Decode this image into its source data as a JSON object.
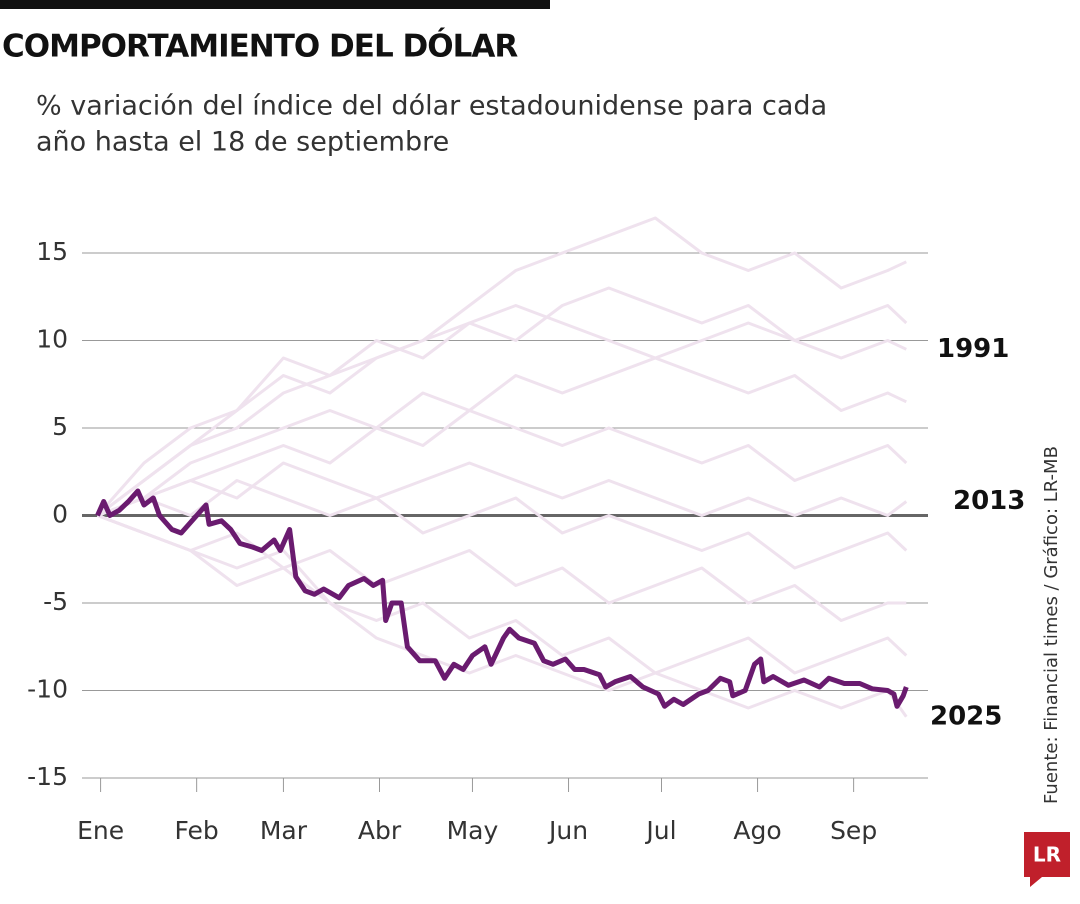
{
  "chart_data": {
    "type": "line",
    "title": "COMPORTAMIENTO DEL DÓLAR",
    "subtitle": [
      "% variación del índice del dólar estadounidense para cada",
      "año hasta el 18 de septiembre"
    ],
    "source": "Fuente: Financial times / Gráfico: LR-MB",
    "logo": "LR",
    "xlim": [
      -5,
      268
    ],
    "xticks": [
      {
        "value": 1,
        "label": "Ene"
      },
      {
        "value": 32,
        "label": "Feb"
      },
      {
        "value": 60,
        "label": "Mar"
      },
      {
        "value": 91,
        "label": "Abr"
      },
      {
        "value": 121,
        "label": "May"
      },
      {
        "value": 152,
        "label": "Jun"
      },
      {
        "value": 182,
        "label": "Jul"
      },
      {
        "value": 213,
        "label": "Ago"
      },
      {
        "value": 244,
        "label": "Sep"
      }
    ],
    "ylim": [
      -15,
      15
    ],
    "yticks": [
      15,
      10,
      5,
      0,
      -5,
      -10,
      -15
    ],
    "grid": true,
    "series": [
      {
        "color": "#efe2ee",
        "x": [
          0,
          15,
          30,
          45,
          60,
          75,
          90,
          105,
          120,
          135,
          150,
          165,
          180,
          195,
          210,
          225,
          240,
          255,
          261
        ],
        "values": [
          0,
          2,
          4,
          5,
          7,
          8,
          9,
          10,
          12,
          14,
          15,
          16,
          17,
          15,
          14,
          15,
          13,
          14,
          14.5
        ]
      },
      {
        "color": "#efe2ee",
        "x": [
          0,
          15,
          30,
          45,
          60,
          75,
          90,
          105,
          120,
          135,
          150,
          165,
          180,
          195,
          210,
          225,
          240,
          255,
          261
        ],
        "values": [
          0,
          3,
          5,
          6,
          8,
          7,
          9,
          10,
          11,
          10,
          12,
          13,
          12,
          11,
          12,
          10,
          11,
          12,
          11
        ]
      },
      {
        "name": "1991",
        "color": "#efe2ee",
        "x": [
          0,
          15,
          30,
          45,
          60,
          75,
          90,
          105,
          120,
          135,
          150,
          165,
          180,
          195,
          210,
          225,
          240,
          255,
          261
        ],
        "values": [
          0,
          2,
          4,
          6,
          9,
          8,
          10,
          9,
          11,
          12,
          11,
          10,
          9,
          10,
          11,
          10,
          9,
          10,
          9.5
        ]
      },
      {
        "color": "#efe2ee",
        "x": [
          0,
          15,
          30,
          45,
          60,
          75,
          90,
          105,
          120,
          135,
          150,
          165,
          180,
          195,
          210,
          225,
          240,
          255,
          261
        ],
        "values": [
          0,
          1,
          3,
          4,
          5,
          6,
          5,
          7,
          6,
          8,
          7,
          8,
          9,
          8,
          7,
          8,
          6,
          7,
          6.5
        ]
      },
      {
        "color": "#efe2ee",
        "x": [
          0,
          15,
          30,
          45,
          60,
          75,
          90,
          105,
          120,
          135,
          150,
          165,
          180,
          195,
          210,
          225,
          240,
          255,
          261
        ],
        "values": [
          0,
          1,
          2,
          3,
          4,
          3,
          5,
          4,
          6,
          5,
          4,
          5,
          4,
          3,
          4,
          2,
          3,
          4,
          3
        ]
      },
      {
        "name": "2013",
        "color": "#efe2ee",
        "x": [
          0,
          15,
          30,
          45,
          60,
          75,
          90,
          105,
          120,
          135,
          150,
          165,
          180,
          195,
          210,
          225,
          240,
          255,
          261
        ],
        "values": [
          0,
          1,
          2,
          1,
          3,
          2,
          1,
          2,
          3,
          2,
          1,
          2,
          1,
          0,
          1,
          0,
          1,
          0,
          0.8
        ]
      },
      {
        "color": "#efe2ee",
        "x": [
          0,
          15,
          30,
          45,
          60,
          75,
          90,
          105,
          120,
          135,
          150,
          165,
          180,
          195,
          210,
          225,
          240,
          255,
          261
        ],
        "values": [
          0,
          1,
          0,
          2,
          1,
          0,
          1,
          -1,
          0,
          1,
          -1,
          0,
          -1,
          -2,
          -1,
          -3,
          -2,
          -1,
          -2
        ]
      },
      {
        "color": "#efe2ee",
        "x": [
          0,
          15,
          30,
          45,
          60,
          75,
          90,
          105,
          120,
          135,
          150,
          165,
          180,
          195,
          210,
          225,
          240,
          255,
          261
        ],
        "values": [
          0,
          -1,
          -2,
          -1,
          -3,
          -2,
          -4,
          -3,
          -2,
          -4,
          -3,
          -5,
          -4,
          -3,
          -5,
          -4,
          -6,
          -5,
          -5
        ]
      },
      {
        "color": "#efe2ee",
        "x": [
          0,
          15,
          30,
          45,
          60,
          75,
          90,
          105,
          120,
          135,
          150,
          165,
          180,
          195,
          210,
          225,
          240,
          255,
          261
        ],
        "values": [
          0,
          -1,
          -2,
          -3,
          -2,
          -5,
          -6,
          -5,
          -7,
          -6,
          -8,
          -7,
          -9,
          -8,
          -7,
          -9,
          -8,
          -7,
          -8
        ]
      },
      {
        "color": "#efe2ee",
        "x": [
          0,
          15,
          30,
          45,
          60,
          75,
          90,
          105,
          120,
          135,
          150,
          165,
          180,
          195,
          210,
          225,
          240,
          255,
          261
        ],
        "values": [
          0,
          -1,
          -2,
          -4,
          -3,
          -5,
          -7,
          -8,
          -9,
          -8,
          -9,
          -10,
          -9,
          -10,
          -11,
          -10,
          -11,
          -10,
          -11.5
        ]
      },
      {
        "name": "2025",
        "color": "#6a1b6f",
        "x": [
          0,
          2,
          4,
          7,
          10,
          13,
          15,
          18,
          20,
          24,
          27,
          31,
          35,
          36,
          40,
          43,
          46,
          50,
          53,
          57,
          59,
          62,
          64,
          67,
          70,
          73,
          78,
          81,
          86,
          89,
          92,
          93,
          95,
          98,
          100,
          104,
          109,
          112,
          115,
          118,
          121,
          125,
          127,
          131,
          133,
          136,
          141,
          144,
          147,
          151,
          154,
          157,
          162,
          164,
          167,
          172,
          176,
          181,
          183,
          186,
          189,
          194,
          197,
          201,
          204,
          205,
          209,
          212,
          214,
          215,
          218,
          223,
          228,
          233,
          236,
          241,
          246,
          250,
          255,
          257,
          258,
          260,
          261
        ],
        "values": [
          0,
          0.8,
          0,
          0.3,
          0.8,
          1.4,
          0.6,
          1.0,
          0,
          -0.8,
          -1.0,
          -0.2,
          0.6,
          -0.5,
          -0.3,
          -0.8,
          -1.6,
          -1.8,
          -2.0,
          -1.4,
          -2.0,
          -0.8,
          -3.5,
          -4.3,
          -4.5,
          -4.2,
          -4.7,
          -4.0,
          -3.6,
          -4.0,
          -3.7,
          -6.0,
          -5.0,
          -5.0,
          -7.5,
          -8.3,
          -8.3,
          -9.3,
          -8.5,
          -8.8,
          -8.0,
          -7.5,
          -8.5,
          -7.0,
          -6.5,
          -7.0,
          -7.3,
          -8.3,
          -8.5,
          -8.2,
          -8.8,
          -8.8,
          -9.1,
          -9.8,
          -9.5,
          -9.2,
          -9.8,
          -10.2,
          -10.9,
          -10.5,
          -10.8,
          -10.2,
          -10.0,
          -9.3,
          -9.5,
          -10.3,
          -10.0,
          -8.5,
          -8.2,
          -9.5,
          -9.2,
          -9.7,
          -9.4,
          -9.8,
          -9.3,
          -9.6,
          -9.6,
          -9.9,
          -10.0,
          -10.2,
          -10.9,
          -10.3,
          -9.8
        ]
      }
    ]
  }
}
